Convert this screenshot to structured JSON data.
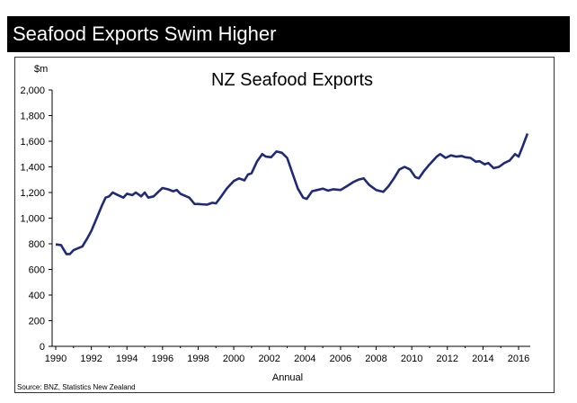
{
  "header": {
    "title": "Seafood Exports Swim Higher"
  },
  "chart_data": {
    "type": "line",
    "title": "NZ Seafood Exports",
    "ylabel": "$m",
    "xlabel": "Annual",
    "source": "Source: BNZ, Statistics New Zealand",
    "ylim": [
      0,
      2000
    ],
    "xlim": [
      1990,
      2016.8
    ],
    "yticks": [
      0,
      200,
      400,
      600,
      800,
      1000,
      1200,
      1400,
      1600,
      1800,
      2000
    ],
    "ytick_labels": [
      "0",
      "200",
      "400",
      "600",
      "800",
      "1,000",
      "1,200",
      "1,400",
      "1,600",
      "1,800",
      "2,000"
    ],
    "xticks": [
      1990,
      1992,
      1994,
      1996,
      1998,
      2000,
      2002,
      2004,
      2006,
      2008,
      2010,
      2012,
      2014,
      2016
    ],
    "xtick_labels": [
      "1990",
      "1992",
      "1994",
      "1996",
      "1998",
      "2000",
      "2002",
      "2004",
      "2006",
      "2008",
      "2010",
      "2012",
      "2014",
      "2016"
    ],
    "grid": false,
    "color": "#1f2a78",
    "series": [
      {
        "name": "NZ Seafood Exports",
        "x": [
          1990.0,
          1990.3,
          1990.6,
          1990.8,
          1991.0,
          1991.5,
          1991.8,
          1992.0,
          1992.3,
          1992.6,
          1992.8,
          1993.0,
          1993.2,
          1993.5,
          1993.8,
          1994.0,
          1994.3,
          1994.5,
          1994.8,
          1995.0,
          1995.2,
          1995.5,
          1995.8,
          1996.0,
          1996.3,
          1996.6,
          1996.8,
          1997.0,
          1997.5,
          1997.8,
          1998.0,
          1998.5,
          1998.8,
          1999.0,
          1999.3,
          1999.6,
          2000.0,
          2000.3,
          2000.6,
          2000.8,
          2001.0,
          2001.3,
          2001.6,
          2001.8,
          2002.1,
          2002.4,
          2002.7,
          2003.0,
          2003.3,
          2003.6,
          2003.9,
          2004.1,
          2004.4,
          2004.7,
          2005.0,
          2005.3,
          2005.6,
          2006.0,
          2006.3,
          2006.7,
          2007.0,
          2007.3,
          2007.6,
          2008.0,
          2008.4,
          2008.7,
          2009.0,
          2009.3,
          2009.6,
          2009.9,
          2010.2,
          2010.4,
          2010.7,
          2011.0,
          2011.4,
          2011.6,
          2011.9,
          2012.2,
          2012.5,
          2012.8,
          2013.0,
          2013.3,
          2013.6,
          2013.8,
          2014.1,
          2014.3,
          2014.6,
          2014.9,
          2015.2,
          2015.5,
          2015.8,
          2016.0,
          2016.2,
          2016.5
        ],
        "values": [
          795,
          790,
          720,
          720,
          750,
          780,
          850,
          900,
          1000,
          1100,
          1160,
          1170,
          1200,
          1180,
          1160,
          1190,
          1180,
          1200,
          1170,
          1200,
          1160,
          1170,
          1210,
          1235,
          1225,
          1210,
          1220,
          1190,
          1160,
          1110,
          1110,
          1105,
          1120,
          1115,
          1170,
          1230,
          1290,
          1310,
          1295,
          1340,
          1350,
          1440,
          1500,
          1480,
          1475,
          1520,
          1510,
          1470,
          1350,
          1230,
          1160,
          1150,
          1210,
          1220,
          1230,
          1215,
          1225,
          1220,
          1245,
          1280,
          1300,
          1310,
          1260,
          1220,
          1205,
          1250,
          1310,
          1380,
          1400,
          1380,
          1320,
          1310,
          1370,
          1420,
          1480,
          1500,
          1470,
          1490,
          1480,
          1485,
          1475,
          1470,
          1440,
          1445,
          1420,
          1430,
          1390,
          1400,
          1430,
          1450,
          1500,
          1480,
          1550,
          1660
        ]
      }
    ]
  }
}
